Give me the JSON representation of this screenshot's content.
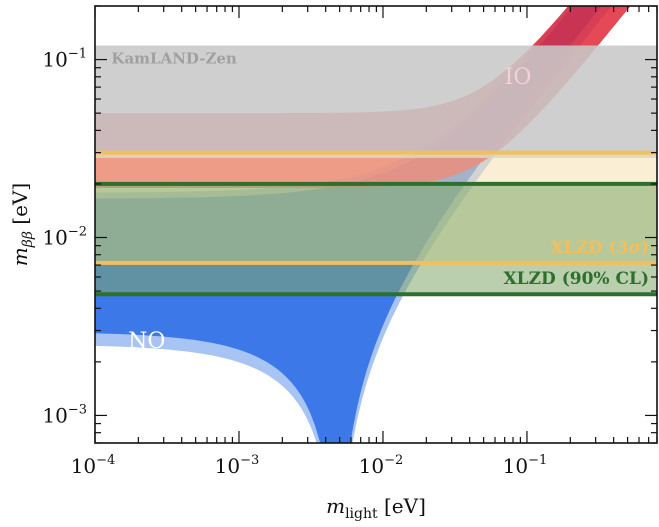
{
  "chart_data": {
    "type": "area",
    "x_scale": "log",
    "y_scale": "log",
    "xlim": [
      0.0001,
      0.8
    ],
    "ylim": [
      0.0007,
      0.2
    ],
    "xlabel": "m_light [eV]",
    "xlabel_parts": {
      "symbol": "m",
      "sub": "light",
      "unit": " [eV]"
    },
    "ylabel": "m_ββ [eV]",
    "ylabel_parts": {
      "symbol": "m",
      "sub": "ββ",
      "unit": " [eV]"
    },
    "x_ticks": [
      {
        "value": 0.0001,
        "base": "10",
        "exp": "−4"
      },
      {
        "value": 0.001,
        "base": "10",
        "exp": "−3"
      },
      {
        "value": 0.01,
        "base": "10",
        "exp": "−2"
      },
      {
        "value": 0.1,
        "base": "10",
        "exp": "−1"
      }
    ],
    "y_ticks": [
      {
        "value": 0.001,
        "base": "10",
        "exp": "−3"
      },
      {
        "value": 0.01,
        "base": "10",
        "exp": "−2"
      },
      {
        "value": 0.1,
        "base": "10",
        "exp": "−1"
      }
    ],
    "grid": false,
    "horizontal_bands": [
      {
        "label": "KamLAND-Zen",
        "y_range": [
          0.028,
          0.12
        ],
        "color": "#c8c8c8"
      }
    ],
    "horizontal_lines": [
      {
        "label": "XLZD (3σ)",
        "values": [
          0.0072,
          0.03
        ],
        "color": "#f0c060",
        "fill": "#f5e2b0"
      },
      {
        "label": "XLZD (90% CL)",
        "values": [
          0.0048,
          0.02
        ],
        "color": "#2e6e2e",
        "fill": "#7fa86a"
      }
    ],
    "region_labels": {
      "io": "IO",
      "no": "NO"
    },
    "label_parts": {
      "xlzd3_main": "XLZD (3",
      "xlzd3_sigma": "σ",
      "xlzd3_close": ")",
      "xlzd90": "XLZD (90% CL)",
      "kamland": "KamLAND-Zen"
    },
    "colors": {
      "io": "#e0283a",
      "no": "#3c78e8",
      "no_3sigma": "#a8c4f4"
    }
  }
}
